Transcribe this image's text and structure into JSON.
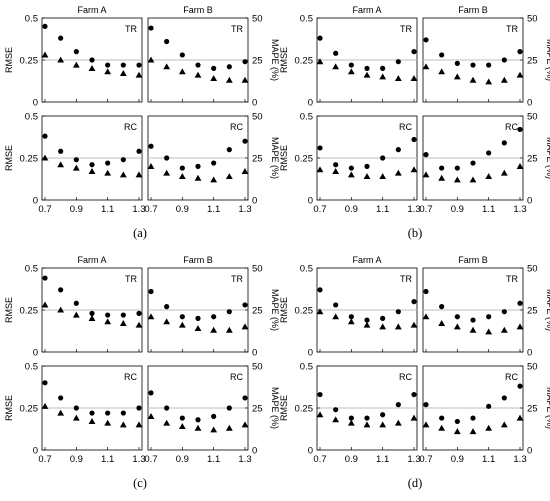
{
  "chart_data": [
    {
      "type": "scatter",
      "label": "(a)",
      "ylabel_left": "RMSE",
      "ylabel_right": "MAPE (%)",
      "xlim": [
        0.7,
        1.3
      ],
      "ylim_left": [
        0,
        0.5
      ],
      "ylim_right": [
        0,
        50
      ],
      "xticks": [
        "0.7",
        "0.9",
        "1.1",
        "1.3"
      ],
      "yticks_left": [
        "0",
        "0.25",
        "0.5"
      ],
      "yticks_right": [
        "0",
        "25",
        "50"
      ],
      "reference_line": 0.25,
      "x": [
        0.7,
        0.8,
        0.9,
        1.0,
        1.1,
        1.2,
        1.3
      ],
      "panels": [
        {
          "farm": "Farm A",
          "tag": "TR",
          "circle": [
            0.45,
            0.38,
            0.3,
            0.25,
            0.22,
            0.22,
            0.22
          ],
          "triangle": [
            0.28,
            0.25,
            0.22,
            0.2,
            0.18,
            0.17,
            0.16
          ]
        },
        {
          "farm": "Farm B",
          "tag": "TR",
          "circle": [
            0.44,
            0.36,
            0.28,
            0.22,
            0.2,
            0.21,
            0.24
          ],
          "triangle": [
            0.25,
            0.21,
            0.18,
            0.16,
            0.14,
            0.13,
            0.13
          ]
        },
        {
          "farm": "",
          "tag": "RC",
          "circle": [
            0.38,
            0.29,
            0.24,
            0.21,
            0.22,
            0.24,
            0.29
          ],
          "triangle": [
            0.25,
            0.21,
            0.19,
            0.17,
            0.16,
            0.15,
            0.15
          ]
        },
        {
          "farm": "",
          "tag": "RC",
          "circle": [
            0.32,
            0.25,
            0.19,
            0.2,
            0.22,
            0.3,
            0.35
          ],
          "triangle": [
            0.2,
            0.16,
            0.14,
            0.13,
            0.12,
            0.14,
            0.17
          ]
        }
      ]
    },
    {
      "type": "scatter",
      "label": "(b)",
      "ylabel_left": "RMSE",
      "ylabel_right": "MAPE (%)",
      "xlim": [
        0.7,
        1.3
      ],
      "ylim_left": [
        0,
        0.5
      ],
      "ylim_right": [
        0,
        50
      ],
      "xticks": [
        "0.7",
        "0.9",
        "1.1",
        "1.3"
      ],
      "yticks_left": [
        "0",
        "0.25",
        "0.5"
      ],
      "yticks_right": [
        "0",
        "25",
        "50"
      ],
      "reference_line": 0.25,
      "x": [
        0.7,
        0.8,
        0.9,
        1.0,
        1.1,
        1.2,
        1.3
      ],
      "panels": [
        {
          "farm": "Farm A",
          "tag": "TR",
          "circle": [
            0.38,
            0.29,
            0.22,
            0.2,
            0.2,
            0.24,
            0.3
          ],
          "triangle": [
            0.24,
            0.21,
            0.18,
            0.16,
            0.15,
            0.14,
            0.14
          ]
        },
        {
          "farm": "Farm B",
          "tag": "TR",
          "circle": [
            0.37,
            0.28,
            0.23,
            0.22,
            0.22,
            0.25,
            0.3
          ],
          "triangle": [
            0.21,
            0.18,
            0.15,
            0.13,
            0.12,
            0.13,
            0.16
          ]
        },
        {
          "farm": "",
          "tag": "RC",
          "circle": [
            0.31,
            0.21,
            0.19,
            0.2,
            0.25,
            0.3,
            0.36
          ],
          "triangle": [
            0.18,
            0.17,
            0.15,
            0.14,
            0.14,
            0.16,
            0.18
          ]
        },
        {
          "farm": "",
          "tag": "RC",
          "circle": [
            0.27,
            0.19,
            0.19,
            0.22,
            0.28,
            0.34,
            0.42
          ],
          "triangle": [
            0.15,
            0.13,
            0.12,
            0.12,
            0.14,
            0.16,
            0.2
          ]
        }
      ]
    },
    {
      "type": "scatter",
      "label": "(c)",
      "ylabel_left": "RMSE",
      "ylabel_right": "MAPE (%)",
      "xlim": [
        0.7,
        1.3
      ],
      "ylim_left": [
        0,
        0.5
      ],
      "ylim_right": [
        0,
        50
      ],
      "xticks": [
        "0.7",
        "0.9",
        "1.1",
        "1.3"
      ],
      "yticks_left": [
        "0",
        "0.25",
        "0.5"
      ],
      "yticks_right": [
        "0",
        "25",
        "50"
      ],
      "reference_line": 0.25,
      "x": [
        0.7,
        0.8,
        0.9,
        1.0,
        1.1,
        1.2,
        1.3
      ],
      "panels": [
        {
          "farm": "Farm A",
          "tag": "TR",
          "circle": [
            0.44,
            0.37,
            0.29,
            0.23,
            0.22,
            0.22,
            0.23
          ],
          "triangle": [
            0.28,
            0.25,
            0.22,
            0.2,
            0.18,
            0.17,
            0.16
          ]
        },
        {
          "farm": "Farm B",
          "tag": "TR",
          "circle": [
            0.36,
            0.27,
            0.21,
            0.2,
            0.21,
            0.24,
            0.28
          ],
          "triangle": [
            0.21,
            0.18,
            0.16,
            0.14,
            0.13,
            0.13,
            0.15
          ]
        },
        {
          "farm": "",
          "tag": "RC",
          "circle": [
            0.4,
            0.31,
            0.25,
            0.22,
            0.22,
            0.22,
            0.25
          ],
          "triangle": [
            0.26,
            0.22,
            0.19,
            0.17,
            0.16,
            0.15,
            0.15
          ]
        },
        {
          "farm": "",
          "tag": "RC",
          "circle": [
            0.34,
            0.25,
            0.19,
            0.18,
            0.2,
            0.25,
            0.31
          ],
          "triangle": [
            0.2,
            0.16,
            0.14,
            0.13,
            0.12,
            0.13,
            0.15
          ]
        }
      ]
    },
    {
      "type": "scatter",
      "label": "(d)",
      "ylabel_left": "RMSE",
      "ylabel_right": "MAPE (%)",
      "xlim": [
        0.7,
        1.3
      ],
      "ylim_left": [
        0,
        0.5
      ],
      "ylim_right": [
        0,
        50
      ],
      "xticks": [
        "0.7",
        "0.9",
        "1.1",
        "1.3"
      ],
      "yticks_left": [
        "0",
        "0.25",
        "0.5"
      ],
      "yticks_right": [
        "0",
        "25",
        "50"
      ],
      "reference_line": 0.25,
      "x": [
        0.7,
        0.8,
        0.9,
        1.0,
        1.1,
        1.2,
        1.3
      ],
      "panels": [
        {
          "farm": "Farm A",
          "tag": "TR",
          "circle": [
            0.37,
            0.28,
            0.21,
            0.19,
            0.2,
            0.24,
            0.3
          ],
          "triangle": [
            0.24,
            0.21,
            0.18,
            0.16,
            0.15,
            0.15,
            0.16
          ]
        },
        {
          "farm": "Farm B",
          "tag": "TR",
          "circle": [
            0.36,
            0.27,
            0.21,
            0.19,
            0.21,
            0.24,
            0.29
          ],
          "triangle": [
            0.21,
            0.17,
            0.15,
            0.13,
            0.12,
            0.13,
            0.15
          ]
        },
        {
          "farm": "",
          "tag": "RC",
          "circle": [
            0.33,
            0.24,
            0.19,
            0.19,
            0.21,
            0.27,
            0.33
          ],
          "triangle": [
            0.21,
            0.18,
            0.16,
            0.15,
            0.15,
            0.16,
            0.19
          ]
        },
        {
          "farm": "",
          "tag": "RC",
          "circle": [
            0.27,
            0.19,
            0.17,
            0.19,
            0.26,
            0.31,
            0.38
          ],
          "triangle": [
            0.15,
            0.13,
            0.11,
            0.11,
            0.13,
            0.15,
            0.19
          ]
        }
      ]
    }
  ]
}
